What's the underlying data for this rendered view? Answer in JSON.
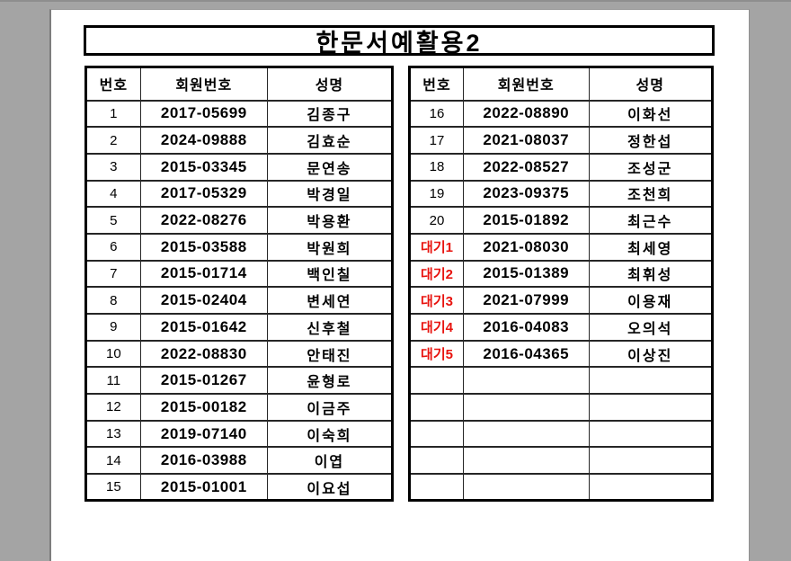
{
  "colors": {
    "background": "#a4a4a4",
    "paper": "#ffffff",
    "grid_line": "#262626",
    "wait_red": "#e8130e"
  },
  "title": "한문서예활용2",
  "columns": [
    "번호",
    "회원번호",
    "성명"
  ],
  "left_table": {
    "rows": [
      {
        "no": "1",
        "id": "2017-05699",
        "name": "김종구"
      },
      {
        "no": "2",
        "id": "2024-09888",
        "name": "김효순"
      },
      {
        "no": "3",
        "id": "2015-03345",
        "name": "문연송"
      },
      {
        "no": "4",
        "id": "2017-05329",
        "name": "박경일"
      },
      {
        "no": "5",
        "id": "2022-08276",
        "name": "박용환"
      },
      {
        "no": "6",
        "id": "2015-03588",
        "name": "박원희"
      },
      {
        "no": "7",
        "id": "2015-01714",
        "name": "백인칠"
      },
      {
        "no": "8",
        "id": "2015-02404",
        "name": "변세연"
      },
      {
        "no": "9",
        "id": "2015-01642",
        "name": "신후철"
      },
      {
        "no": "10",
        "id": "2022-08830",
        "name": "안태진"
      },
      {
        "no": "11",
        "id": "2015-01267",
        "name": "윤형로"
      },
      {
        "no": "12",
        "id": "2015-00182",
        "name": "이금주"
      },
      {
        "no": "13",
        "id": "2019-07140",
        "name": "이숙희"
      },
      {
        "no": "14",
        "id": "2016-03988",
        "name": "이엽"
      },
      {
        "no": "15",
        "id": "2015-01001",
        "name": "이요섭"
      }
    ]
  },
  "right_table": {
    "rows": [
      {
        "no": "16",
        "id": "2022-08890",
        "name": "이화선"
      },
      {
        "no": "17",
        "id": "2021-08037",
        "name": "정한섭"
      },
      {
        "no": "18",
        "id": "2022-08527",
        "name": "조성군"
      },
      {
        "no": "19",
        "id": "2023-09375",
        "name": "조천희"
      },
      {
        "no": "20",
        "id": "2015-01892",
        "name": "최근수"
      },
      {
        "no": "대기1",
        "id": "2021-08030",
        "name": "최세영"
      },
      {
        "no": "대기2",
        "id": "2015-01389",
        "name": "최휘성"
      },
      {
        "no": "대기3",
        "id": "2021-07999",
        "name": "이용재"
      },
      {
        "no": "대기4",
        "id": "2016-04083",
        "name": "오의석"
      },
      {
        "no": "대기5",
        "id": "2016-04365",
        "name": "이상진"
      },
      {
        "no": "",
        "id": "",
        "name": ""
      },
      {
        "no": "",
        "id": "",
        "name": ""
      },
      {
        "no": "",
        "id": "",
        "name": ""
      },
      {
        "no": "",
        "id": "",
        "name": ""
      },
      {
        "no": "",
        "id": "",
        "name": ""
      }
    ]
  }
}
